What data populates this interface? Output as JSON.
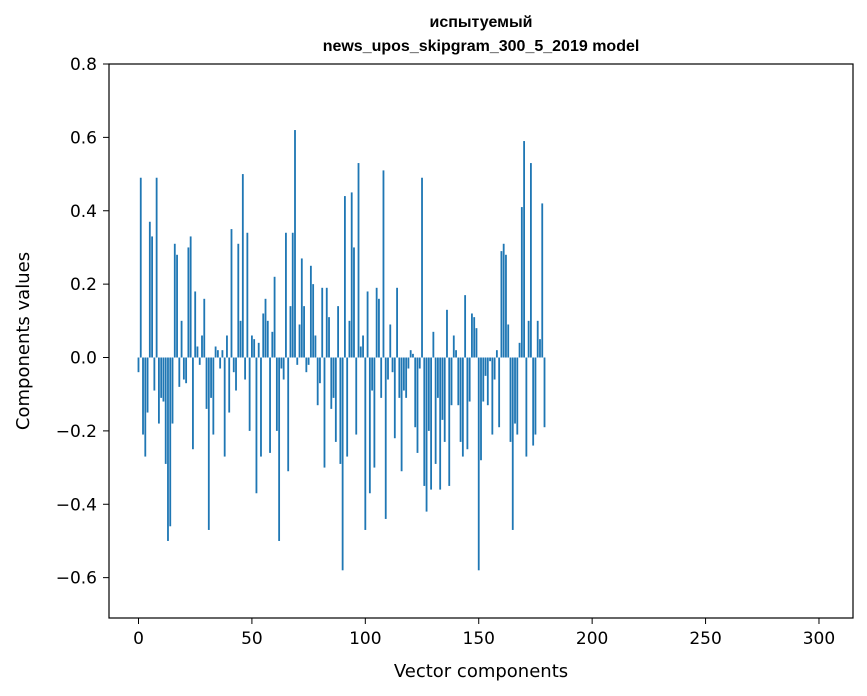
{
  "chart_data": {
    "type": "bar",
    "title_line1": "испытуемый",
    "title_line2": "news_upos_skipgram_300_5_2019 model",
    "xlabel": "Vector components",
    "ylabel": "Components values",
    "xlim": [
      -13,
      315
    ],
    "ylim": [
      -0.71,
      0.8
    ],
    "xticks": [
      0,
      50,
      100,
      150,
      200,
      250,
      300
    ],
    "xtick_labels": [
      "0",
      "50",
      "100",
      "150",
      "200",
      "250",
      "300"
    ],
    "yticks": [
      -0.6,
      -0.4,
      -0.2,
      0.0,
      0.2,
      0.4,
      0.6,
      0.8
    ],
    "ytick_labels": [
      "−0.6",
      "−0.4",
      "−0.2",
      "0.0",
      "0.2",
      "0.4",
      "0.6",
      "0.8"
    ],
    "grid": false,
    "bar_color": "#1f77b4",
    "values": [
      -0.04,
      0.49,
      -0.21,
      -0.27,
      -0.15,
      0.37,
      0.33,
      -0.09,
      0.49,
      -0.18,
      -0.11,
      -0.12,
      -0.29,
      -0.5,
      -0.46,
      -0.18,
      0.31,
      0.28,
      -0.08,
      0.1,
      -0.06,
      -0.07,
      0.3,
      0.33,
      -0.25,
      0.18,
      0.03,
      -0.02,
      0.06,
      0.16,
      -0.14,
      -0.47,
      -0.11,
      -0.21,
      0.03,
      0.02,
      -0.03,
      0.02,
      -0.27,
      0.06,
      -0.15,
      0.35,
      -0.04,
      -0.09,
      0.31,
      0.1,
      0.5,
      -0.06,
      0.34,
      -0.2,
      0.06,
      0.05,
      -0.37,
      0.04,
      -0.27,
      0.12,
      0.16,
      0.1,
      -0.26,
      0.07,
      0.22,
      -0.2,
      -0.5,
      -0.03,
      -0.06,
      0.34,
      -0.31,
      0.14,
      0.34,
      0.62,
      -0.02,
      0.09,
      0.27,
      0.14,
      -0.04,
      -0.02,
      0.25,
      0.2,
      0.06,
      -0.13,
      -0.07,
      0.19,
      -0.3,
      0.19,
      0.11,
      -0.14,
      -0.11,
      -0.23,
      0.14,
      -0.29,
      -0.58,
      0.44,
      -0.27,
      0.1,
      0.45,
      0.3,
      -0.21,
      0.53,
      0.03,
      0.06,
      -0.47,
      0.18,
      -0.37,
      -0.09,
      -0.3,
      0.19,
      0.16,
      -0.11,
      0.51,
      -0.44,
      -0.06,
      0.09,
      -0.04,
      -0.22,
      0.19,
      -0.11,
      -0.31,
      -0.09,
      -0.11,
      -0.03,
      0.02,
      0.01,
      -0.19,
      -0.26,
      -0.03,
      0.49,
      -0.35,
      -0.42,
      -0.2,
      -0.36,
      0.07,
      -0.29,
      -0.11,
      -0.36,
      -0.17,
      -0.23,
      0.13,
      -0.35,
      -0.13,
      0.06,
      0.02,
      -0.13,
      -0.23,
      -0.27,
      0.17,
      -0.25,
      -0.12,
      0.12,
      0.11,
      0.08,
      -0.58,
      -0.28,
      -0.12,
      -0.05,
      -0.13,
      -0.01,
      -0.21,
      -0.06,
      0.02,
      -0.19,
      0.29,
      0.31,
      0.28,
      0.09,
      -0.23,
      -0.47,
      -0.18,
      -0.21,
      0.04,
      0.41,
      0.59,
      -0.27,
      0.1,
      0.53,
      -0.24,
      -0.21,
      0.1,
      0.05,
      0.42,
      -0.19
    ]
  }
}
